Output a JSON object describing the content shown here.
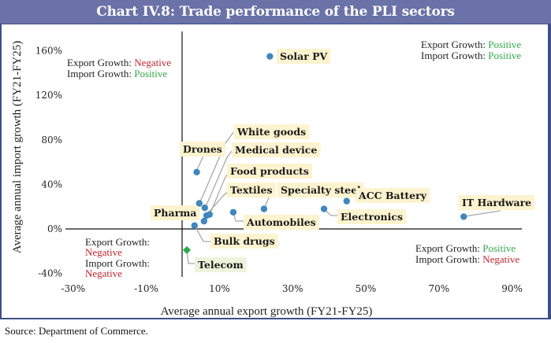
{
  "title": "Chart IV.8: Trade performance of the PLI sectors",
  "source": "Source: Department of Commerce.",
  "colors": {
    "point": "#3f87bd",
    "telecom_point": "#2eaa4a",
    "positive": "#2eaa4a",
    "negative": "#c0262d",
    "title_bar": "#6a72a8"
  },
  "quadrant_notes": {
    "top_left": {
      "export_label": "Export Growth: ",
      "export_value": "Negative",
      "import_label": "Import Growth: ",
      "import_value": "Positive"
    },
    "top_right": {
      "export_label": "Export Growth: ",
      "export_value": "Positive",
      "import_label": "Import Growth: ",
      "import_value": "Positive"
    },
    "bottom_left": {
      "export_label": "Export Growth:",
      "export_value": "Negative",
      "import_label": "Import Growth:",
      "import_value": "Negative"
    },
    "bottom_right": {
      "export_label": "Export Growth: ",
      "export_value": "Positive",
      "import_label": "Import Growth: ",
      "import_value": "Negative"
    }
  },
  "chart_data": {
    "type": "scatter",
    "title": "Chart IV.8: Trade performance of the PLI sectors",
    "xlabel": "Average annual export growth (FY21-FY25)",
    "ylabel": "Average annual import growth (FY21-FY25)",
    "xlim": [
      -30,
      90
    ],
    "ylim": [
      -40,
      160
    ],
    "x_ticks": [
      "-30%",
      "-10%",
      "10%",
      "30%",
      "50%",
      "70%",
      "90%"
    ],
    "x_tick_values": [
      -30,
      -10,
      10,
      30,
      50,
      70,
      90
    ],
    "y_ticks": [
      "160%",
      "120%",
      "80%",
      "40%",
      "0%",
      "-40%"
    ],
    "y_tick_values": [
      160,
      120,
      80,
      40,
      0,
      -40
    ],
    "grid": false,
    "points": [
      {
        "name": "Solar PV",
        "x": 24,
        "y": 155,
        "marker": "circle"
      },
      {
        "name": "Drones",
        "x": 4,
        "y": 51,
        "marker": "circle"
      },
      {
        "name": "White goods",
        "x": 4.7,
        "y": 23,
        "marker": "circle"
      },
      {
        "name": "Medical device",
        "x": 6.2,
        "y": 19,
        "marker": "circle"
      },
      {
        "name": "Food products",
        "x": 7.5,
        "y": 13,
        "marker": "circle"
      },
      {
        "name": "Textiles",
        "x": 6.7,
        "y": 12,
        "marker": "circle"
      },
      {
        "name": "Pharma",
        "x": 6,
        "y": 7,
        "marker": "circle"
      },
      {
        "name": "Bulk drugs",
        "x": 3.4,
        "y": 3,
        "marker": "circle"
      },
      {
        "name": "Telecom",
        "x": 1.3,
        "y": -19,
        "marker": "diamond"
      },
      {
        "name": "Automobiles",
        "x": 14,
        "y": 15,
        "marker": "circle"
      },
      {
        "name": "Specialty steel",
        "x": 22.4,
        "y": 18,
        "marker": "circle"
      },
      {
        "name": "Electronics",
        "x": 38.8,
        "y": 18,
        "marker": "circle"
      },
      {
        "name": "ACC Battery",
        "x": 45,
        "y": 25,
        "marker": "circle"
      },
      {
        "name": "IT Hardware",
        "x": 77,
        "y": 11,
        "marker": "circle"
      }
    ]
  }
}
